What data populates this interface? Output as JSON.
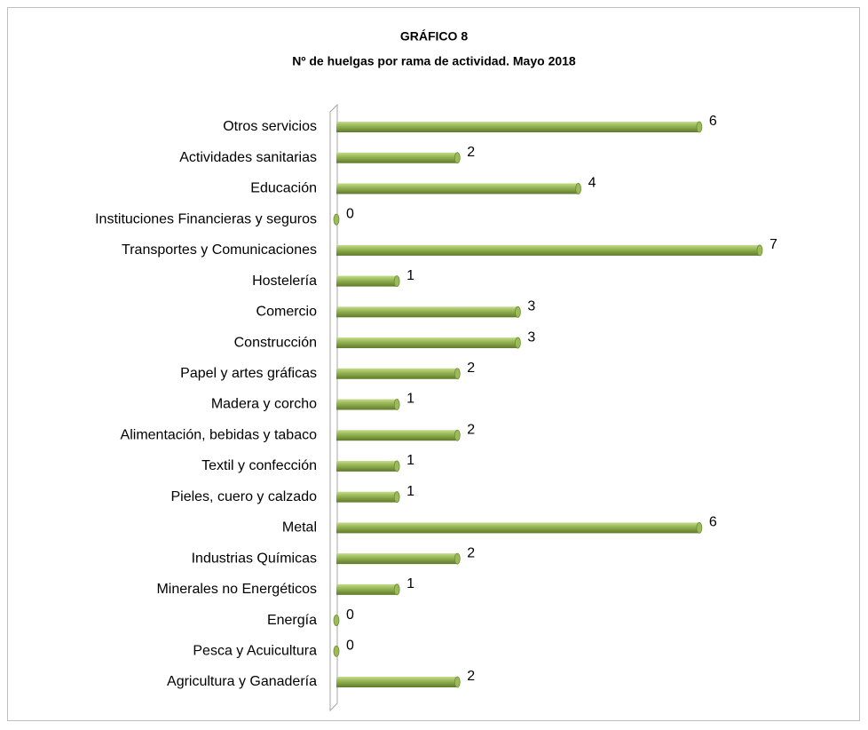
{
  "chart_data": {
    "type": "bar",
    "orientation": "horizontal",
    "title": "GRÁFICO 8",
    "subtitle": "Nº de huelgas por rama de actividad. Mayo 2018",
    "categories": [
      "Otros servicios",
      "Actividades sanitarias",
      "Educación",
      "Instituciones Financieras y seguros",
      "Transportes y Comunicaciones",
      "Hostelería",
      "Comercio",
      "Construcción",
      "Papel y artes gráficas",
      "Madera y corcho",
      "Alimentación, bebidas y tabaco",
      "Textil y confección",
      "Pieles, cuero y calzado",
      "Metal",
      "Industrias Químicas",
      "Minerales no Energéticos",
      "Energía",
      "Pesca y Acuicultura",
      "Agricultura y Ganadería"
    ],
    "values": [
      6,
      2,
      4,
      0,
      7,
      1,
      3,
      3,
      2,
      1,
      2,
      1,
      1,
      6,
      2,
      1,
      0,
      0,
      2
    ],
    "color": "#9bbb59"
  }
}
